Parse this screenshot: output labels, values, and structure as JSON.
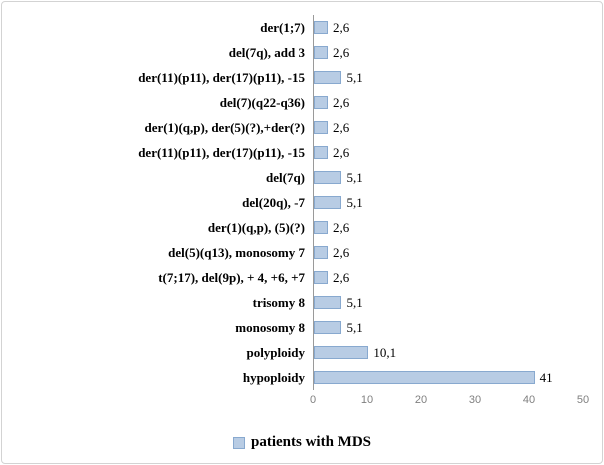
{
  "chart_data": {
    "type": "bar",
    "orientation": "horizontal",
    "title": "",
    "xlabel": "",
    "ylabel": "",
    "categories": [
      "der(1;7)",
      "del(7q), add 3",
      "der(11)(p11), der(17)(p11), -15",
      "del(7)(q22-q36)",
      "der(1)(q,p), der(5)(?),+der(?)",
      "der(11)(p11), der(17)(p11), -15",
      "del(7q)",
      "del(20q), -7",
      "der(1)(q,p), (5)(?)",
      "del(5)(q13), monosomy 7",
      "t(7;17), del(9p), + 4, +6, +7",
      "trisomy 8",
      "monosomy 8",
      "polyploidy",
      "hypoploidy"
    ],
    "values": [
      2.6,
      2.6,
      5.1,
      2.6,
      2.6,
      2.6,
      5.1,
      5.1,
      2.6,
      2.6,
      2.6,
      5.1,
      5.1,
      10.1,
      41
    ],
    "value_labels": [
      "2,6",
      "2,6",
      "5,1",
      "2,6",
      "2,6",
      "2,6",
      "5,1",
      "5,1",
      "2,6",
      "2,6",
      "2,6",
      "5,1",
      "5,1",
      "10,1",
      "41"
    ],
    "x_ticks": [
      "0",
      "10",
      "20",
      "30",
      "40",
      "50"
    ],
    "xlim": [
      0,
      50
    ],
    "grid": "off",
    "legend_position": "bottom",
    "legend": "patients with MDS",
    "bar_fill": "#b8cce4",
    "bar_border": "#88a9cf"
  }
}
